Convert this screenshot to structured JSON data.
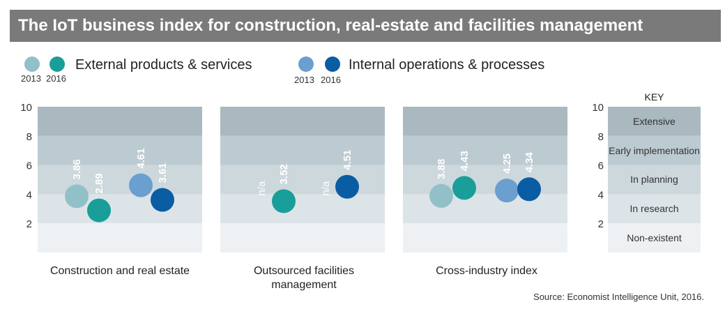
{
  "header": {
    "title": "The IoT business index for construction, real-estate and facilities management"
  },
  "legend": {
    "groups": [
      {
        "label": "External products & services",
        "years": [
          "2013",
          "2016"
        ],
        "colors": [
          "#92c0c8",
          "#1a9e9a"
        ]
      },
      {
        "label": "Internal operations & processes",
        "years": [
          "2013",
          "2016"
        ],
        "colors": [
          "#6a9fcf",
          "#0a5ca3"
        ]
      }
    ]
  },
  "chart_data": {
    "type": "scatter",
    "ylim": [
      0,
      10
    ],
    "yticks": [
      "10",
      "8",
      "6",
      "4",
      "2"
    ],
    "band_colors": [
      "#a9b9bf",
      "#bccbd1",
      "#cdd8dd",
      "#dce4e8",
      "#eef1f3"
    ],
    "panels": [
      {
        "label": "Construction and real estate",
        "points": [
          {
            "series": "External products & services 2013",
            "value": 3.86,
            "label": "3.86",
            "color": "#92c0c8"
          },
          {
            "series": "External products & services 2016",
            "value": 2.89,
            "label": "2.89",
            "color": "#1a9e9a"
          },
          {
            "series": "Internal operations & processes 2013",
            "value": 4.61,
            "label": "4.61",
            "color": "#6a9fcf"
          },
          {
            "series": "Internal operations & processes 2016",
            "value": 3.61,
            "label": "3.61",
            "color": "#0a5ca3"
          }
        ]
      },
      {
        "label": "Outsourced facilities management",
        "points": [
          {
            "series": "External products & services 2013",
            "value": null,
            "label": "n/a",
            "color": "#92c0c8"
          },
          {
            "series": "External products & services 2016",
            "value": 3.52,
            "label": "3.52",
            "color": "#1a9e9a"
          },
          {
            "series": "Internal operations & processes 2013",
            "value": null,
            "label": "n/a",
            "color": "#6a9fcf"
          },
          {
            "series": "Internal operations & processes 2016",
            "value": 4.51,
            "label": "4.51",
            "color": "#0a5ca3"
          }
        ]
      },
      {
        "label": "Cross-industry index",
        "points": [
          {
            "series": "External products & services 2013",
            "value": 3.88,
            "label": "3.88",
            "color": "#92c0c8"
          },
          {
            "series": "External products & services 2016",
            "value": 4.43,
            "label": "4.43",
            "color": "#1a9e9a"
          },
          {
            "series": "Internal operations & processes 2013",
            "value": 4.25,
            "label": "4.25",
            "color": "#6a9fcf"
          },
          {
            "series": "Internal operations & processes 2016",
            "value": 4.34,
            "label": "4.34",
            "color": "#0a5ca3"
          }
        ]
      }
    ],
    "key": {
      "title": "KEY",
      "bands": [
        "Extensive",
        "Early implementation",
        "In planning",
        "In research",
        "Non-existent"
      ]
    }
  },
  "source": "Source: Economist Intelligence Unit, 2016."
}
